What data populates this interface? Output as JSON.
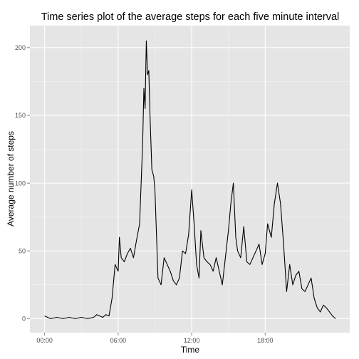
{
  "chart_data": {
    "type": "line",
    "title": "Time series plot of the average steps for each five minute interval",
    "xlabel": "Time",
    "ylabel": "Average number of steps",
    "x_unit": "hours",
    "x_ticks": [
      0,
      6,
      12,
      18
    ],
    "x_tick_labels": [
      "00:00",
      "06:00",
      "12:00",
      "18:00"
    ],
    "y_ticks": [
      0,
      50,
      100,
      150,
      200
    ],
    "y_tick_labels": [
      "0",
      "50",
      "100",
      "150",
      "200"
    ],
    "xlim": [
      -1.2,
      24.9
    ],
    "ylim": [
      -10.3,
      216.2
    ],
    "grid": true,
    "legend": "none",
    "colors": {
      "panel": "#e5e5e5",
      "grid_major": "#ffffff",
      "line": "#000000"
    },
    "series": [
      {
        "x": [
          0,
          0.5,
          1,
          1.5,
          2,
          2.5,
          3,
          3.5,
          4,
          4.25,
          4.5,
          4.75,
          5,
          5.25,
          5.5,
          5.75,
          6,
          6.1,
          6.25,
          6.5,
          6.75,
          7,
          7.25,
          7.5,
          7.75,
          8,
          8.1,
          8.2,
          8.3,
          8.4,
          8.5,
          8.6,
          8.75,
          8.9,
          9,
          9.25,
          9.5,
          9.75,
          10,
          10.25,
          10.5,
          10.75,
          11,
          11.25,
          11.5,
          11.75,
          12,
          12.2,
          12.4,
          12.6,
          12.75,
          13,
          13.25,
          13.5,
          13.75,
          14,
          14.25,
          14.5,
          14.75,
          15,
          15.2,
          15.4,
          15.6,
          15.75,
          16,
          16.25,
          16.5,
          16.75,
          17,
          17.25,
          17.5,
          17.75,
          18,
          18.2,
          18.5,
          18.75,
          19,
          19.25,
          19.5,
          19.75,
          20,
          20.25,
          20.5,
          20.75,
          21,
          21.25,
          21.5,
          21.75,
          22,
          22.25,
          22.5,
          22.75,
          23,
          23.25,
          23.5,
          23.75
        ],
        "values": [
          2,
          0,
          1,
          0,
          1,
          0,
          1,
          0,
          1,
          3,
          2,
          1,
          3,
          2,
          15,
          40,
          35,
          60,
          45,
          42,
          48,
          52,
          45,
          58,
          70,
          130,
          170,
          155,
          205,
          180,
          183,
          150,
          110,
          105,
          95,
          30,
          25,
          45,
          40,
          35,
          28,
          25,
          30,
          50,
          48,
          62,
          95,
          70,
          40,
          30,
          65,
          45,
          42,
          40,
          35,
          45,
          35,
          25,
          45,
          65,
          85,
          100,
          60,
          50,
          45,
          68,
          42,
          40,
          45,
          50,
          55,
          40,
          48,
          70,
          60,
          85,
          100,
          85,
          55,
          20,
          40,
          25,
          32,
          35,
          22,
          20,
          25,
          30,
          15,
          8,
          5,
          10,
          8,
          5,
          2,
          0
        ]
      }
    ]
  }
}
